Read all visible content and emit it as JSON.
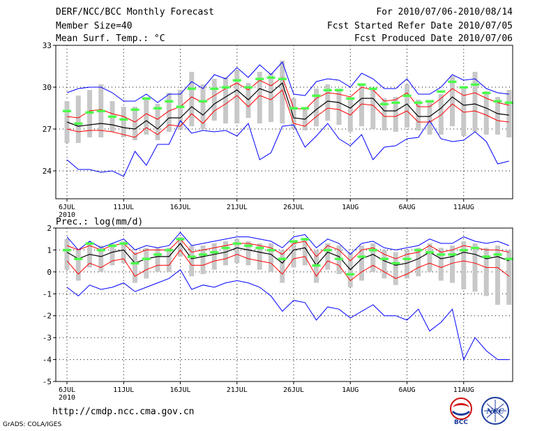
{
  "header": {
    "title": "DERF/NCC/BCC Monthly Forecast",
    "member_size": "Member Size=40",
    "variable": "Mean Surf. Temp.: °C",
    "period": "For 2010/07/06-2010/08/14",
    "started": "Fcst Started Refer Date 2010/07/05",
    "produced": "Fcst Produced Date 2010/07/06"
  },
  "footer": {
    "url": "http://cmdp.ncc.cma.gov.cn",
    "grads": "GrADS: COLA/IGES",
    "logo_bcc": "BCC",
    "logo_ncc": "NCC"
  },
  "colors": {
    "box": "#c8c8c8",
    "green": "#4cff4c",
    "red": "#ff0000",
    "blue": "#0000ff",
    "black": "#000000"
  },
  "chart_data": [
    {
      "type": "line",
      "title": "Mean Surf. Temp.: °C",
      "ylim": [
        22,
        33
      ],
      "yticks": [
        24,
        27,
        30,
        33
      ],
      "xticks": [
        "6JUL",
        "11JUL",
        "16JUL",
        "21JUL",
        "26JUL",
        "1AUG",
        "6AUG",
        "11AUG"
      ],
      "x_year": "2010",
      "days": 40,
      "series": [
        {
          "name": "ensemble mean",
          "color": "black",
          "values": [
            27.5,
            27.2,
            27.3,
            27.4,
            27.3,
            27.1,
            27.0,
            27.6,
            27.0,
            27.8,
            27.8,
            28.6,
            28.0,
            28.8,
            29.3,
            29.8,
            29.1,
            29.9,
            29.6,
            30.3,
            27.8,
            27.7,
            28.4,
            29.0,
            28.9,
            28.5,
            29.2,
            29.2,
            28.3,
            28.3,
            28.8,
            27.9,
            27.9,
            28.5,
            29.3,
            28.7,
            28.8,
            28.5,
            28.1,
            28.0
          ]
        },
        {
          "name": "upper spread",
          "color": "red",
          "values": [
            27.9,
            27.8,
            28.3,
            28.4,
            28.1,
            27.9,
            27.5,
            28.1,
            27.7,
            28.3,
            28.6,
            29.3,
            28.9,
            29.4,
            29.9,
            30.3,
            29.8,
            30.5,
            30.1,
            30.7,
            28.5,
            28.4,
            29.2,
            29.6,
            29.5,
            29.3,
            30.0,
            29.8,
            29.0,
            29.1,
            29.6,
            28.6,
            28.6,
            29.2,
            29.9,
            29.4,
            29.6,
            29.2,
            28.9,
            28.7
          ]
        },
        {
          "name": "lower spread",
          "color": "red",
          "values": [
            27.0,
            26.8,
            26.9,
            26.9,
            26.8,
            26.6,
            26.4,
            27.1,
            26.6,
            27.3,
            27.2,
            28.1,
            27.4,
            28.3,
            28.8,
            29.4,
            28.6,
            29.4,
            29.1,
            29.8,
            27.4,
            27.2,
            27.9,
            28.5,
            28.4,
            28.0,
            28.8,
            28.7,
            27.9,
            27.9,
            28.3,
            27.5,
            27.5,
            28.0,
            28.8,
            28.2,
            28.3,
            28.0,
            27.6,
            27.5
          ]
        },
        {
          "name": "maximum",
          "color": "blue",
          "values": [
            29.6,
            29.9,
            30.0,
            30.0,
            29.6,
            29.0,
            29.0,
            29.5,
            28.9,
            29.5,
            29.5,
            30.4,
            29.9,
            30.9,
            30.6,
            31.4,
            30.7,
            31.6,
            30.9,
            31.8,
            29.5,
            29.4,
            30.4,
            30.6,
            30.5,
            30.0,
            31.0,
            30.6,
            29.9,
            29.9,
            30.6,
            29.5,
            29.5,
            30.0,
            30.9,
            30.5,
            30.6,
            29.9,
            29.6,
            29.5
          ]
        },
        {
          "name": "minimum",
          "color": "blue",
          "values": [
            24.8,
            24.1,
            24.1,
            23.9,
            24.0,
            23.6,
            25.4,
            24.4,
            25.9,
            25.9,
            27.6,
            26.7,
            26.9,
            26.8,
            26.9,
            26.5,
            27.4,
            24.8,
            25.3,
            27.2,
            27.3,
            25.7,
            26.5,
            27.4,
            26.3,
            25.8,
            26.6,
            24.8,
            25.7,
            25.8,
            26.3,
            26.4,
            27.6,
            26.3,
            26.1,
            26.2,
            26.8,
            26.1,
            24.5,
            24.7
          ]
        },
        {
          "name": "deterministic",
          "color": "green",
          "values": [
            28.3,
            27.4,
            28.2,
            28.3,
            27.9,
            27.7,
            28.4,
            29.2,
            28.5,
            29.0,
            28.6,
            29.9,
            29.0,
            29.9,
            30.0,
            30.5,
            30.0,
            30.6,
            30.7,
            30.6,
            28.5,
            28.5,
            29.4,
            29.8,
            29.8,
            29.2,
            30.2,
            29.9,
            28.8,
            28.9,
            29.4,
            28.9,
            29.0,
            29.7,
            30.4,
            30.0,
            30.2,
            29.6,
            29.0,
            28.9
          ]
        },
        {
          "name": "box top",
          "color": "box",
          "values": [
            29.0,
            29.4,
            29.8,
            30.2,
            29.0,
            28.6,
            28.6,
            29.2,
            28.8,
            29.6,
            29.8,
            31.1,
            30.2,
            30.6,
            30.7,
            31.2,
            30.3,
            31.1,
            31.0,
            31.9,
            29.2,
            28.4,
            29.9,
            30.2,
            29.9,
            29.2,
            30.2,
            29.9,
            29.2,
            29.3,
            30.2,
            29.1,
            28.9,
            29.5,
            30.8,
            29.9,
            31.1,
            29.7,
            29.3,
            29.8
          ]
        },
        {
          "name": "box bottom",
          "color": "box",
          "values": [
            26.0,
            26.0,
            26.4,
            26.4,
            26.8,
            26.4,
            26.2,
            26.6,
            26.2,
            26.8,
            27.0,
            27.2,
            27.0,
            27.6,
            27.4,
            27.4,
            27.8,
            27.4,
            27.5,
            27.4,
            27.0,
            26.9,
            27.2,
            27.6,
            27.3,
            26.8,
            27.2,
            27.0,
            26.9,
            26.8,
            27.1,
            26.9,
            26.6,
            26.6,
            27.2,
            26.5,
            26.8,
            26.6,
            26.6,
            26.4
          ]
        }
      ]
    },
    {
      "type": "line",
      "title": "Prec.: log(mm/d)",
      "ylim": [
        -5,
        2
      ],
      "yticks": [
        2,
        1,
        0,
        -1,
        -2,
        -3,
        -4,
        -5
      ],
      "xticks": [
        "6JUL",
        "11JUL",
        "16JUL",
        "21JUL",
        "26JUL",
        "1AUG",
        "6AUG",
        "11AUG"
      ],
      "x_year": "2010",
      "days": 40,
      "series": [
        {
          "name": "ensemble mean",
          "color": "black",
          "values": [
            0.9,
            0.6,
            0.8,
            0.7,
            0.9,
            1.0,
            0.4,
            0.6,
            0.7,
            0.7,
            1.3,
            0.6,
            0.7,
            0.8,
            0.9,
            1.1,
            1.0,
            0.9,
            0.8,
            0.4,
            1.0,
            1.1,
            0.3,
            0.9,
            0.7,
            0.1,
            0.6,
            0.8,
            0.5,
            0.3,
            0.4,
            0.6,
            0.9,
            0.6,
            0.7,
            0.9,
            0.8,
            0.6,
            0.7,
            0.5
          ]
        },
        {
          "name": "upper spread",
          "color": "red",
          "values": [
            1.2,
            1.0,
            1.2,
            1.0,
            1.2,
            1.3,
            0.8,
            1.0,
            1.0,
            1.0,
            1.5,
            0.9,
            1.0,
            1.1,
            1.2,
            1.3,
            1.3,
            1.2,
            1.1,
            0.8,
            1.3,
            1.4,
            0.7,
            1.2,
            1.0,
            0.5,
            1.0,
            1.1,
            0.8,
            0.6,
            0.8,
            0.9,
            1.2,
            0.9,
            1.0,
            1.2,
            1.1,
            1.0,
            1.0,
            0.9
          ]
        },
        {
          "name": "lower spread",
          "color": "red",
          "values": [
            0.5,
            -0.1,
            0.4,
            0.2,
            0.5,
            0.6,
            -0.2,
            0.1,
            0.3,
            0.3,
            1.0,
            0.3,
            0.3,
            0.5,
            0.6,
            0.8,
            0.6,
            0.5,
            0.4,
            -0.1,
            0.6,
            0.7,
            -0.2,
            0.5,
            0.3,
            -0.4,
            0.0,
            0.3,
            0.0,
            -0.3,
            -0.1,
            0.2,
            0.4,
            0.2,
            0.4,
            0.5,
            0.4,
            0.2,
            0.2,
            -0.2
          ]
        },
        {
          "name": "maximum",
          "color": "blue",
          "values": [
            1.6,
            1.0,
            1.4,
            1.1,
            1.3,
            1.5,
            1.0,
            1.2,
            1.1,
            1.2,
            1.8,
            1.2,
            1.3,
            1.4,
            1.5,
            1.6,
            1.6,
            1.5,
            1.4,
            1.1,
            1.6,
            1.7,
            1.1,
            1.5,
            1.3,
            0.8,
            1.3,
            1.4,
            1.1,
            1.0,
            1.1,
            1.2,
            1.5,
            1.3,
            1.3,
            1.6,
            1.4,
            1.3,
            1.4,
            1.2
          ]
        },
        {
          "name": "minimum",
          "color": "blue",
          "values": [
            -0.7,
            -1.1,
            -0.6,
            -0.8,
            -0.7,
            -0.5,
            -0.9,
            -0.7,
            -0.5,
            -0.3,
            0.1,
            -0.8,
            -0.6,
            -0.7,
            -0.5,
            -0.4,
            -0.5,
            -0.7,
            -1.1,
            -1.8,
            -1.3,
            -1.4,
            -2.2,
            -1.6,
            -1.7,
            -2.1,
            -1.8,
            -1.5,
            -2.0,
            -2.0,
            -2.2,
            -1.7,
            -2.7,
            -2.3,
            -1.7,
            -4.0,
            -3.0,
            -3.6,
            -4.0,
            -4.0
          ]
        },
        {
          "name": "deterministic",
          "color": "green",
          "values": [
            1.0,
            0.6,
            1.3,
            1.0,
            1.2,
            1.3,
            0.4,
            0.6,
            0.8,
            1.0,
            1.5,
            0.7,
            0.8,
            0.9,
            1.1,
            1.3,
            1.2,
            1.1,
            1.0,
            0.6,
            1.4,
            1.5,
            0.3,
            1.0,
            0.6,
            -0.1,
            0.7,
            1.0,
            0.6,
            0.4,
            0.6,
            1.0,
            0.9,
            0.8,
            0.8,
            1.0,
            1.1,
            0.7,
            0.8,
            0.6
          ]
        },
        {
          "name": "box top",
          "color": "box",
          "values": [
            1.5,
            1.0,
            1.3,
            1.2,
            1.3,
            1.4,
            0.9,
            1.1,
            1.1,
            1.1,
            1.6,
            1.2,
            1.2,
            1.3,
            1.4,
            1.5,
            1.4,
            1.3,
            1.3,
            1.0,
            1.4,
            1.5,
            1.0,
            1.3,
            1.2,
            0.9,
            1.2,
            1.3,
            1.0,
            0.9,
            1.0,
            1.1,
            1.3,
            1.1,
            1.2,
            1.4,
            1.3,
            1.1,
            1.2,
            1.0
          ]
        },
        {
          "name": "box bottom",
          "color": "box",
          "values": [
            0.1,
            -0.4,
            0.2,
            0.0,
            0.3,
            0.4,
            -0.5,
            -0.3,
            0.0,
            0.0,
            0.7,
            -0.2,
            -0.1,
            0.1,
            0.3,
            0.4,
            0.3,
            0.1,
            0.0,
            -0.5,
            0.2,
            0.3,
            -0.5,
            0.1,
            -0.1,
            -0.7,
            -0.4,
            0.0,
            -0.3,
            -0.6,
            -0.3,
            -0.2,
            0.0,
            -0.4,
            -0.5,
            -0.8,
            -0.9,
            -1.1,
            -1.5,
            -1.5
          ]
        }
      ]
    }
  ]
}
